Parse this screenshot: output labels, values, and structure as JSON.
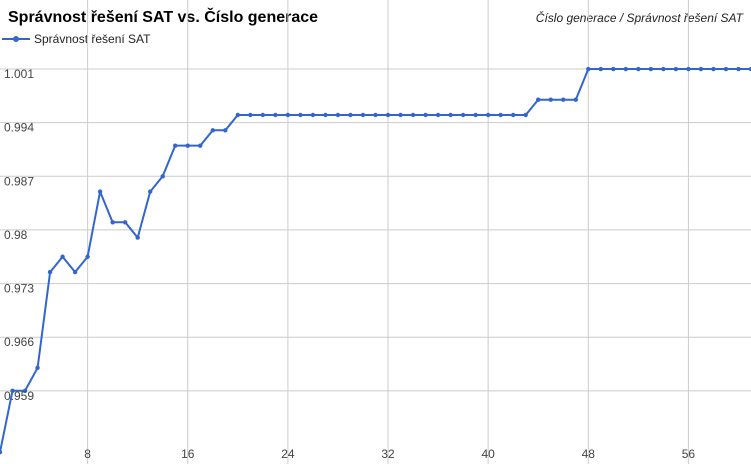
{
  "chart_data": {
    "type": "line",
    "title": "Správnost řešení SAT vs. Číslo generace",
    "subtitle": "Číslo generace / Správnost řešení SAT",
    "xlabel": "",
    "ylabel": "",
    "grid": true,
    "legend_position": "top-left",
    "xlim": [
      1,
      61
    ],
    "ylim": [
      0.9518,
      1.0027
    ],
    "x_ticks": [
      "8",
      "16",
      "24",
      "32",
      "40",
      "48",
      "56"
    ],
    "y_ticks": [
      "0.959",
      "0.966",
      "0.973",
      "0.98",
      "0.987",
      "0.994",
      "1.001"
    ],
    "series": [
      {
        "name": "Správnost řešení SAT",
        "color": "#3366cc",
        "x": [
          1,
          2,
          3,
          4,
          5,
          6,
          7,
          8,
          9,
          10,
          11,
          12,
          13,
          14,
          15,
          16,
          17,
          18,
          19,
          20,
          21,
          22,
          23,
          24,
          25,
          26,
          27,
          28,
          29,
          30,
          31,
          32,
          33,
          34,
          35,
          36,
          37,
          38,
          39,
          40,
          41,
          42,
          43,
          44,
          45,
          46,
          47,
          48,
          49,
          50,
          51,
          52,
          53,
          54,
          55,
          56,
          57,
          58,
          59,
          60,
          61
        ],
        "y": [
          0.951,
          0.959,
          0.959,
          0.962,
          0.9745,
          0.9765,
          0.9745,
          0.9765,
          0.985,
          0.981,
          0.981,
          0.979,
          0.985,
          0.987,
          0.991,
          0.991,
          0.991,
          0.993,
          0.993,
          0.995,
          0.995,
          0.995,
          0.995,
          0.995,
          0.995,
          0.995,
          0.995,
          0.995,
          0.995,
          0.995,
          0.995,
          0.995,
          0.995,
          0.995,
          0.995,
          0.995,
          0.995,
          0.995,
          0.995,
          0.995,
          0.995,
          0.995,
          0.995,
          0.997,
          0.997,
          0.997,
          0.997,
          1.001,
          1.001,
          1.001,
          1.001,
          1.001,
          1.001,
          1.001,
          1.001,
          1.001,
          1.001,
          1.001,
          1.001,
          1.001,
          1.001
        ]
      }
    ]
  }
}
